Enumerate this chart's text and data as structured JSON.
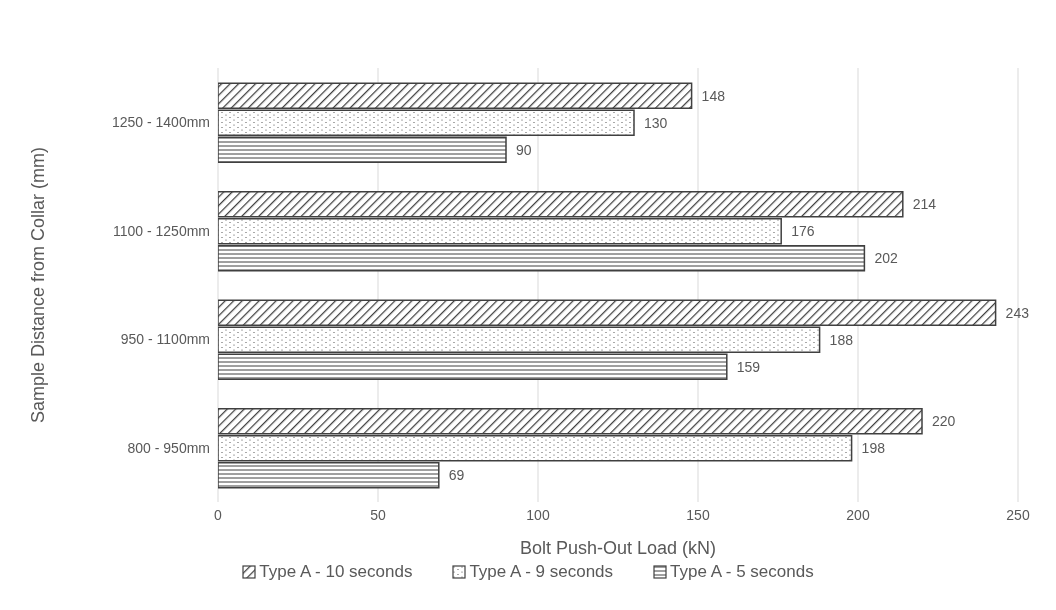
{
  "chart_data": {
    "type": "bar",
    "orientation": "horizontal",
    "xlabel": "Bolt Push-Out Load (kN)",
    "ylabel": "Sample Distance from Collar (mm)",
    "categories": [
      "1250 - 1400mm",
      "1100 - 1250mm",
      "950 - 1100mm",
      "800 - 950mm"
    ],
    "series": [
      {
        "name": "Type A - 10 seconds",
        "color": "#404040",
        "values": [
          148,
          214,
          243,
          220
        ]
      },
      {
        "name": "Type A - 9 seconds",
        "color": "#404040",
        "values": [
          130,
          176,
          188,
          198
        ]
      },
      {
        "name": "Type A - 5 seconds",
        "color": "#404040",
        "values": [
          90,
          202,
          159,
          69
        ]
      }
    ],
    "xlim": [
      0,
      250
    ],
    "xticks": [
      0,
      50,
      100,
      150,
      200,
      250
    ],
    "grid": "x",
    "legend": "bottom",
    "data_labels": true
  }
}
